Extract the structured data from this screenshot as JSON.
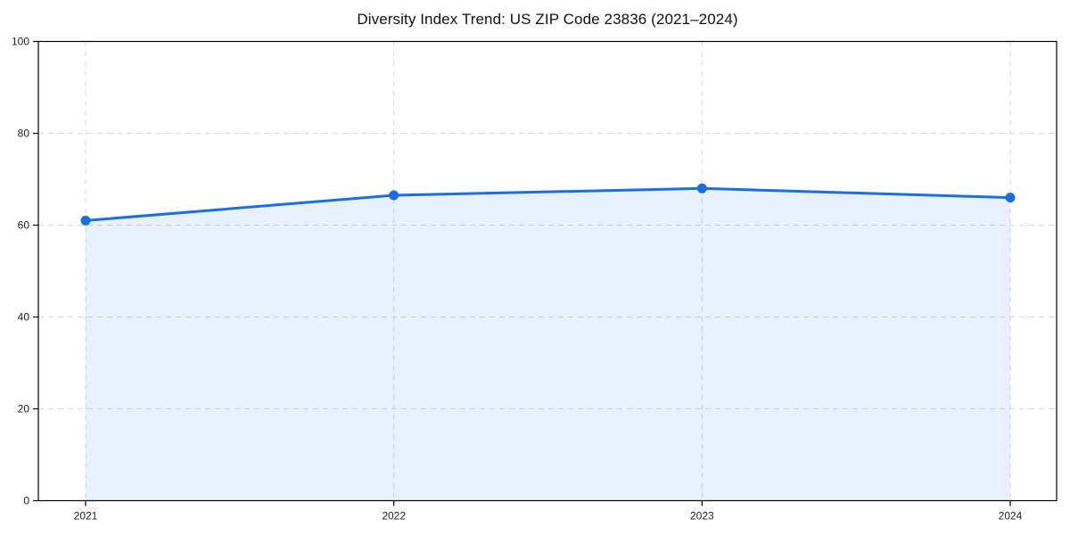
{
  "chart_data": {
    "type": "area",
    "title": "Diversity Index Trend: US ZIP Code 23836 (2021–2024)",
    "categories": [
      "2021",
      "2022",
      "2023",
      "2024"
    ],
    "series": [
      {
        "name": "Diversity Index",
        "values": [
          61,
          66.5,
          68,
          66
        ]
      }
    ],
    "xlabel": "",
    "ylabel": "",
    "ylim": [
      0,
      100
    ],
    "yticks": [
      0,
      20,
      40,
      60,
      80,
      100
    ],
    "grid": "dashed, horizontal and vertical",
    "legend_position": "none",
    "colors": {
      "line": "#1a6fe0",
      "marker": "#1a6fe0",
      "fill": "rgba(26, 111, 224, 0.10)",
      "grid": "#d9d9d9",
      "spine": "#000000",
      "tick_text": "#222222",
      "background": "#ffffff"
    }
  }
}
